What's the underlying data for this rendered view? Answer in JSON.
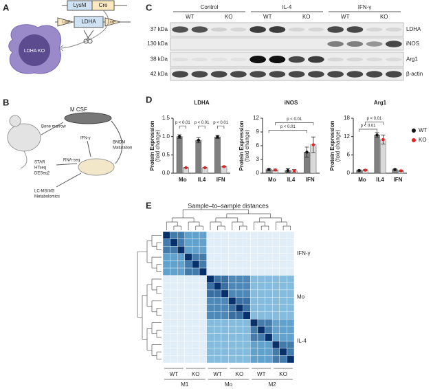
{
  "panel_a": {
    "label": "A",
    "lysm": "LysM",
    "cre": "Cre",
    "loxp_1": "LoxP",
    "ldha": "LDHA",
    "loxp_2": "LoxP",
    "cell": "LDHA KO"
  },
  "panel_b": {
    "label": "B",
    "mcsf": "M CSF",
    "bone_marrow": "Bone marrow",
    "ifn": "IFN-γ",
    "bmdm": "BMDM",
    "maturation": "Maturation",
    "rna_seq": "RNA-seq",
    "pipeline": [
      "STAR",
      "HTseq",
      "DESeq2"
    ],
    "lcms": "LC-MS/MS",
    "metabolomics": "Metabolomics"
  },
  "panel_c": {
    "label": "C",
    "treatments": [
      "Control",
      "IL-4",
      "IFN-γ"
    ],
    "genotypes": [
      "WT",
      "KO",
      "WT",
      "KO",
      "WT",
      "KO"
    ],
    "rows": [
      {
        "weight": "37 kDa",
        "protein": "LDHA"
      },
      {
        "weight": "130 kDa",
        "protein": "iNOS"
      },
      {
        "weight": "38 kDa",
        "protein": "Arg1"
      },
      {
        "weight": "42 kDa",
        "protein": "β-actin"
      }
    ]
  },
  "panel_d": {
    "label": "D",
    "charts": [
      {
        "type": "bar",
        "title": "LDHA",
        "y_label": [
          "Protein Expression",
          "(fold change)"
        ],
        "categories": [
          "Mo",
          "IL4",
          "IFN"
        ],
        "ylim": [
          0,
          1.5
        ],
        "yticks": [
          {
            "value": 0,
            "label": "0.0"
          },
          0.5,
          {
            "value": 1,
            "label": "1.0"
          },
          1.5
        ],
        "series": [
          {
            "name": "WT",
            "color": "#7f7f7f",
            "dot_color": "#111111",
            "values": [
              1.0,
              0.9,
              0.99
            ],
            "errors": [
              0.05,
              0.07,
              0.04
            ]
          },
          {
            "name": "KO",
            "color": "#d9d9d9",
            "dot_color": "#e8201f",
            "values": [
              0.15,
              0.15,
              0.18
            ],
            "errors": [
              0.01,
              0.01,
              0.01
            ]
          }
        ],
        "brackets": [
          "p < 0.01",
          "p < 0.01",
          "p < 0.01"
        ]
      },
      {
        "type": "bar",
        "title": "iNOS",
        "y_label": [
          "Protein Expression",
          "(fold change)"
        ],
        "categories": [
          "Mo",
          "IL4",
          "IFN"
        ],
        "ylim": [
          0,
          12
        ],
        "yticks": [
          0,
          3,
          6,
          9,
          12
        ],
        "series": [
          {
            "name": "WT",
            "color": "#7f7f7f",
            "dot_color": "#111111",
            "values": [
              0.8,
              0.6,
              4.6
            ],
            "errors": [
              0.2,
              0.4,
              1.1
            ]
          },
          {
            "name": "KO",
            "color": "#d9d9d9",
            "dot_color": "#e8201f",
            "values": [
              0.7,
              0.5,
              6.2
            ],
            "errors": [
              0.2,
              0.3,
              1.7
            ]
          }
        ],
        "brackets": [
          "p < 0.01",
          "p < 0.01"
        ]
      },
      {
        "type": "bar",
        "title": "Arg1",
        "y_label": [
          "Protein Expression",
          "(fold change)"
        ],
        "categories": [
          "Mo",
          "IL4",
          "IFN"
        ],
        "ylim": [
          0,
          18
        ],
        "yticks": [
          0,
          6,
          12,
          18
        ],
        "series": [
          {
            "name": "WT",
            "color": "#7f7f7f",
            "dot_color": "#111111",
            "values": [
              0.9,
              12.5,
              1.2
            ],
            "errors": [
              0.2,
              0.8,
              0.2
            ]
          },
          {
            "name": "KO",
            "color": "#d9d9d9",
            "dot_color": "#e8201f",
            "values": [
              1.0,
              11.0,
              0.8
            ],
            "errors": [
              0.2,
              1.5,
              0.2
            ]
          }
        ],
        "brackets": [
          "p < 0.01",
          "p < 0.01"
        ]
      }
    ]
  },
  "panel_e": {
    "label": "E",
    "title": "Sample–to–sample distances",
    "row_groups": [
      "IFN-γ",
      "Mo",
      "IL-4"
    ],
    "col_genotypes": [
      "WT",
      "KO",
      "WT",
      "KO",
      "WT",
      "KO"
    ],
    "col_groups": [
      "M1",
      "Mo",
      "M2"
    ],
    "matrix": [
      [
        1,
        0.7,
        0.7,
        0.55,
        0.55,
        0.55,
        0.05,
        0.05,
        0.05,
        0.05,
        0.05,
        0.05,
        0.05,
        0.05,
        0.05,
        0.05,
        0.05,
        0.05
      ],
      [
        0.7,
        1,
        0.7,
        0.55,
        0.55,
        0.55,
        0.05,
        0.05,
        0.05,
        0.05,
        0.05,
        0.05,
        0.05,
        0.05,
        0.05,
        0.05,
        0.05,
        0.05
      ],
      [
        0.7,
        0.7,
        1,
        0.55,
        0.55,
        0.55,
        0.05,
        0.05,
        0.05,
        0.05,
        0.05,
        0.05,
        0.05,
        0.05,
        0.05,
        0.05,
        0.05,
        0.05
      ],
      [
        0.55,
        0.55,
        0.55,
        1,
        0.7,
        0.7,
        0.05,
        0.05,
        0.05,
        0.05,
        0.05,
        0.05,
        0.05,
        0.05,
        0.05,
        0.05,
        0.05,
        0.05
      ],
      [
        0.55,
        0.55,
        0.55,
        0.7,
        1,
        0.7,
        0.05,
        0.05,
        0.05,
        0.05,
        0.05,
        0.05,
        0.05,
        0.05,
        0.05,
        0.05,
        0.05,
        0.05
      ],
      [
        0.55,
        0.55,
        0.55,
        0.7,
        0.7,
        1,
        0.05,
        0.05,
        0.05,
        0.05,
        0.05,
        0.05,
        0.05,
        0.05,
        0.05,
        0.05,
        0.05,
        0.05
      ],
      [
        0.05,
        0.05,
        0.05,
        0.05,
        0.05,
        0.05,
        1,
        0.75,
        0.75,
        0.65,
        0.65,
        0.65,
        0.4,
        0.4,
        0.4,
        0.4,
        0.4,
        0.4
      ],
      [
        0.05,
        0.05,
        0.05,
        0.05,
        0.05,
        0.05,
        0.75,
        1,
        0.75,
        0.65,
        0.65,
        0.65,
        0.4,
        0.4,
        0.4,
        0.4,
        0.4,
        0.4
      ],
      [
        0.05,
        0.05,
        0.05,
        0.05,
        0.05,
        0.05,
        0.75,
        0.75,
        1,
        0.65,
        0.65,
        0.65,
        0.4,
        0.4,
        0.4,
        0.4,
        0.4,
        0.4
      ],
      [
        0.05,
        0.05,
        0.05,
        0.05,
        0.05,
        0.05,
        0.65,
        0.65,
        0.65,
        1,
        0.75,
        0.75,
        0.4,
        0.4,
        0.4,
        0.4,
        0.4,
        0.4
      ],
      [
        0.05,
        0.05,
        0.05,
        0.05,
        0.05,
        0.05,
        0.65,
        0.65,
        0.65,
        0.75,
        1,
        0.75,
        0.4,
        0.4,
        0.4,
        0.4,
        0.4,
        0.4
      ],
      [
        0.05,
        0.05,
        0.05,
        0.05,
        0.05,
        0.05,
        0.65,
        0.65,
        0.65,
        0.75,
        0.75,
        1,
        0.4,
        0.4,
        0.4,
        0.4,
        0.4,
        0.4
      ],
      [
        0.05,
        0.05,
        0.05,
        0.05,
        0.05,
        0.05,
        0.4,
        0.4,
        0.4,
        0.4,
        0.4,
        0.4,
        1,
        0.7,
        0.7,
        0.55,
        0.55,
        0.55
      ],
      [
        0.05,
        0.05,
        0.05,
        0.05,
        0.05,
        0.05,
        0.4,
        0.4,
        0.4,
        0.4,
        0.4,
        0.4,
        0.7,
        1,
        0.7,
        0.55,
        0.55,
        0.55
      ],
      [
        0.05,
        0.05,
        0.05,
        0.05,
        0.05,
        0.05,
        0.4,
        0.4,
        0.4,
        0.4,
        0.4,
        0.4,
        0.7,
        0.7,
        1,
        0.55,
        0.55,
        0.55
      ],
      [
        0.05,
        0.05,
        0.05,
        0.05,
        0.05,
        0.05,
        0.4,
        0.4,
        0.4,
        0.4,
        0.4,
        0.4,
        0.55,
        0.55,
        0.55,
        1,
        0.7,
        0.7
      ],
      [
        0.05,
        0.05,
        0.05,
        0.05,
        0.05,
        0.05,
        0.4,
        0.4,
        0.4,
        0.4,
        0.4,
        0.4,
        0.55,
        0.55,
        0.55,
        0.7,
        1,
        0.7
      ],
      [
        0.05,
        0.05,
        0.05,
        0.05,
        0.05,
        0.05,
        0.4,
        0.4,
        0.4,
        0.4,
        0.4,
        0.4,
        0.55,
        0.55,
        0.55,
        0.7,
        0.7,
        1
      ]
    ]
  }
}
